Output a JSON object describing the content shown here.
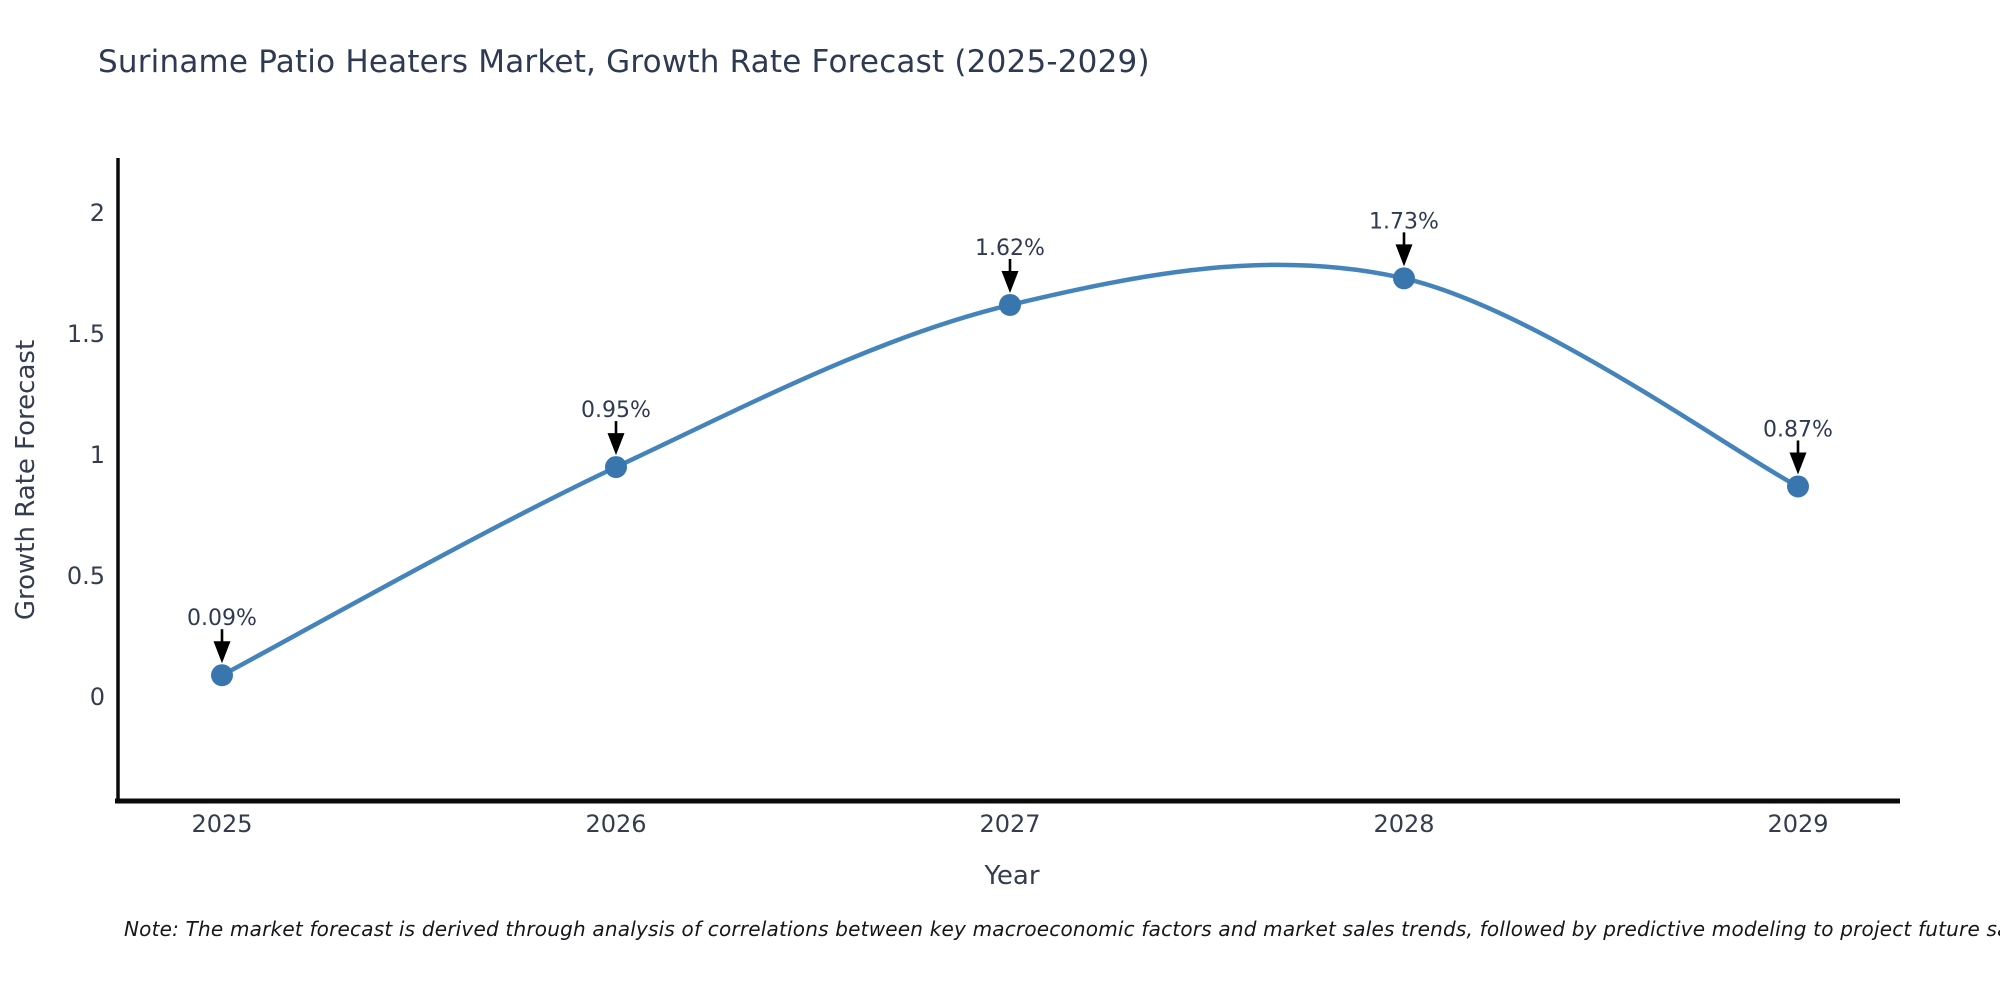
{
  "title": "Suriname Patio Heaters Market, Growth Rate Forecast (2025-2029)",
  "note": "Note: The market forecast is derived through analysis of correlations between key macroeconomic factors and market sales trends, followed by predictive modeling to project future sales",
  "chart_data": {
    "type": "line",
    "smooth": true,
    "categories": [
      "2025",
      "2026",
      "2027",
      "2028",
      "2029"
    ],
    "series": [
      {
        "name": "Growth Rate Forecast",
        "values": [
          0.09,
          0.95,
          1.62,
          1.73,
          0.87
        ]
      }
    ],
    "point_labels": [
      "0.09%",
      "0.95%",
      "1.62%",
      "1.73%",
      "0.87%"
    ],
    "title": "Suriname Patio Heaters Market, Growth Rate Forecast (2025-2029)",
    "xlabel": "Year",
    "ylabel": "Growth Rate Forecast",
    "yticks": {
      "values": [
        0,
        0.5,
        1,
        1.5,
        2
      ],
      "labels": [
        "0",
        "0.5",
        "1",
        "1.5",
        "2"
      ]
    },
    "ylim": [
      -0.43,
      2.23
    ],
    "grid": false,
    "legend_position": "none",
    "annotations": "value labels with downward black arrows above each data point"
  },
  "colors": {
    "background": "#ffffff",
    "line": "#4584bb",
    "marker": "#3a76ae",
    "axis": "#0a0a0a",
    "title_text": "#2e3a52",
    "tick_text": "#333d4d",
    "arrow": "#000000",
    "note_text": "#15161a"
  }
}
